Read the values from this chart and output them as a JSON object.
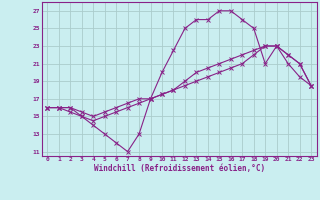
{
  "xlabel": "Windchill (Refroidissement éolien,°C)",
  "background_color": "#caeef0",
  "line_color": "#882288",
  "grid_color": "#aacccc",
  "xlim": [
    -0.5,
    23.5
  ],
  "ylim": [
    10.5,
    28
  ],
  "yticks": [
    11,
    13,
    15,
    17,
    19,
    21,
    23,
    25,
    27
  ],
  "xticks": [
    0,
    1,
    2,
    3,
    4,
    5,
    6,
    7,
    8,
    9,
    10,
    11,
    12,
    13,
    14,
    15,
    16,
    17,
    18,
    19,
    20,
    21,
    22,
    23
  ],
  "line1_x": [
    0,
    1,
    2,
    3,
    4,
    5,
    6,
    7,
    8,
    9,
    10,
    11,
    12,
    13,
    14,
    15,
    16,
    17,
    18,
    19,
    20,
    21,
    22,
    23
  ],
  "line1_y": [
    16,
    16,
    16,
    15,
    14,
    13,
    12,
    11,
    13,
    17,
    20,
    22.5,
    25,
    26,
    26,
    27,
    27,
    26,
    25,
    21,
    23,
    21,
    19.5,
    18.5
  ],
  "line2_x": [
    0,
    1,
    2,
    3,
    4,
    5,
    6,
    7,
    8,
    9,
    10,
    11,
    12,
    13,
    14,
    15,
    16,
    17,
    18,
    19,
    20,
    21,
    22,
    23
  ],
  "line2_y": [
    16,
    16,
    15.5,
    15,
    14.5,
    15,
    15.5,
    16,
    16.5,
    17,
    17.5,
    18,
    19,
    20,
    20.5,
    21,
    21.5,
    22,
    22.5,
    23,
    23,
    22,
    21,
    18.5
  ],
  "line3_x": [
    0,
    1,
    2,
    3,
    4,
    5,
    6,
    7,
    8,
    9,
    10,
    11,
    12,
    13,
    14,
    15,
    16,
    17,
    18,
    19,
    20,
    21,
    22,
    23
  ],
  "line3_y": [
    16,
    16,
    16,
    15.5,
    15,
    15.5,
    16,
    16.5,
    17,
    17,
    17.5,
    18,
    18.5,
    19,
    19.5,
    20,
    20.5,
    21,
    22,
    23,
    23,
    22,
    21,
    18.5
  ]
}
